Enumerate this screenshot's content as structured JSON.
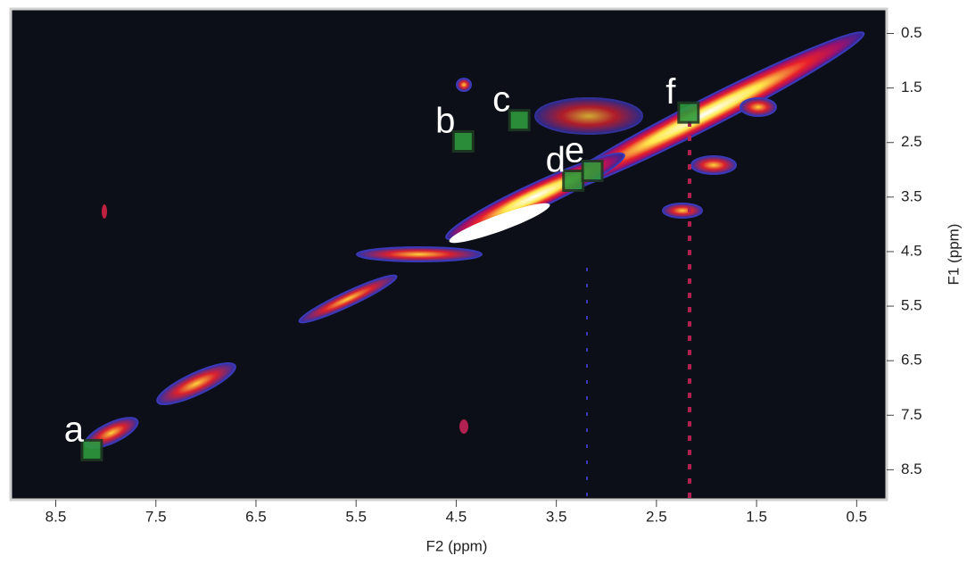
{
  "chart_data": {
    "type": "scatter",
    "x_label": "F2 (ppm)",
    "y_label": "F1 (ppm)",
    "xlim": [
      8.95,
      0.2
    ],
    "ylim": [
      0.05,
      9.05
    ],
    "xticks": [
      8.5,
      7.5,
      6.5,
      5.5,
      4.5,
      3.5,
      2.5,
      1.5,
      0.5
    ],
    "yticks": [
      0.5,
      1.5,
      2.5,
      3.5,
      4.5,
      5.5,
      6.5,
      7.5,
      8.5
    ],
    "color": "#2e9a3c",
    "points": [
      {
        "label": "a",
        "x": 8.14,
        "y": 8.14
      },
      {
        "label": "b",
        "x": 4.43,
        "y": 2.48
      },
      {
        "label": "c",
        "x": 3.87,
        "y": 2.09
      },
      {
        "label": "d",
        "x": 3.33,
        "y": 3.2
      },
      {
        "label": "e",
        "x": 3.14,
        "y": 3.02
      },
      {
        "label": "f",
        "x": 2.18,
        "y": 1.95
      }
    ]
  }
}
